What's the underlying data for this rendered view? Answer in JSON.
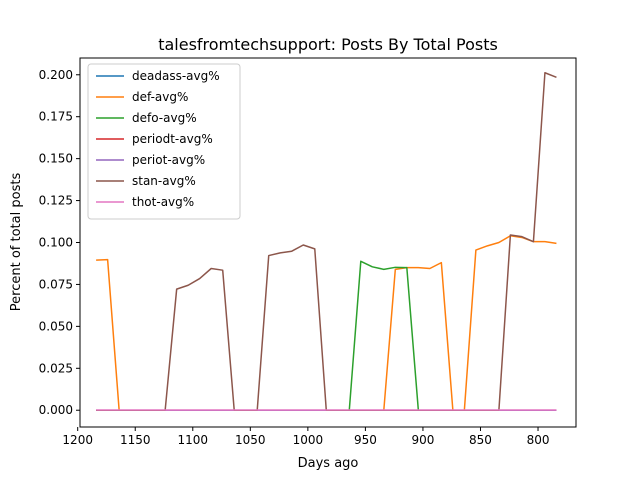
{
  "chart_data": {
    "type": "line",
    "title": "talesfromtechsupport: Posts By Total Posts",
    "xlabel": "Days ago",
    "ylabel": "Percent of total posts",
    "xlim": [
      1198,
      767
    ],
    "ylim": [
      -0.01,
      0.21
    ],
    "x_reversed": true,
    "xticks": [
      1200,
      1150,
      1100,
      1050,
      1000,
      950,
      900,
      850,
      800
    ],
    "xtick_labels": [
      "1200",
      "1150",
      "1100",
      "1050",
      "1000",
      "950",
      "900",
      "850",
      "800"
    ],
    "yticks": [
      0.0,
      0.025,
      0.05,
      0.075,
      0.1,
      0.125,
      0.15,
      0.175,
      0.2
    ],
    "ytick_labels": [
      "0.000",
      "0.025",
      "0.050",
      "0.075",
      "0.100",
      "0.125",
      "0.150",
      "0.175",
      "0.200"
    ],
    "grid": false,
    "legend_position": "upper-left",
    "x": [
      1184,
      1174,
      1164,
      1154,
      1144,
      1134,
      1124,
      1114,
      1104,
      1094,
      1084,
      1074,
      1064,
      1054,
      1044,
      1034,
      1024,
      1014,
      1004,
      994,
      984,
      974,
      964,
      954,
      944,
      934,
      924,
      914,
      904,
      894,
      884,
      874,
      864,
      854,
      844,
      834,
      824,
      814,
      804,
      794,
      784
    ],
    "series": [
      {
        "name": "deadass-avg%",
        "color": "#1f77b4",
        "values": [
          0,
          0,
          0,
          0,
          0,
          0,
          0,
          0,
          0,
          0,
          0,
          0,
          0,
          0,
          0,
          0,
          0,
          0,
          0,
          0,
          0,
          0,
          0,
          0,
          0,
          0,
          0,
          0,
          0,
          0,
          0,
          0,
          0,
          0,
          0,
          0,
          0,
          0,
          0,
          0,
          0
        ]
      },
      {
        "name": "def-avg%",
        "color": "#ff7f0e",
        "values": [
          0.0895,
          0.0898,
          0,
          0,
          0,
          0,
          0,
          0,
          0,
          0,
          0,
          0,
          0,
          0,
          0,
          0,
          0,
          0,
          0,
          0,
          0,
          0,
          0,
          0,
          0,
          0,
          0.084,
          0.085,
          0.085,
          0.0845,
          0.088,
          0,
          0,
          0.0955,
          0.098,
          0.1,
          0.104,
          0.103,
          0.1005,
          0.1005,
          0.0995
        ]
      },
      {
        "name": "defo-avg%",
        "color": "#2ca02c",
        "values": [
          0,
          0,
          0,
          0,
          0,
          0,
          0,
          0,
          0,
          0,
          0,
          0,
          0,
          0,
          0,
          0,
          0,
          0,
          0,
          0,
          0,
          0,
          0,
          0.0888,
          0.0855,
          0.084,
          0.0852,
          0.085,
          0,
          0,
          0,
          0,
          0,
          0,
          0,
          0,
          0,
          0,
          0,
          0,
          0
        ]
      },
      {
        "name": "periodt-avg%",
        "color": "#d62728",
        "values": [
          0,
          0,
          0,
          0,
          0,
          0,
          0,
          0,
          0,
          0,
          0,
          0,
          0,
          0,
          0,
          0,
          0,
          0,
          0,
          0,
          0,
          0,
          0,
          0,
          0,
          0,
          0,
          0,
          0,
          0,
          0,
          0,
          0,
          0,
          0,
          0,
          0,
          0,
          0,
          0,
          0
        ]
      },
      {
        "name": "periot-avg%",
        "color": "#9467bd",
        "values": [
          0,
          0,
          0,
          0,
          0,
          0,
          0,
          0,
          0,
          0,
          0,
          0,
          0,
          0,
          0,
          0,
          0,
          0,
          0,
          0,
          0,
          0,
          0,
          0,
          0,
          0,
          0,
          0,
          0,
          0,
          0,
          0,
          0,
          0,
          0,
          0,
          0,
          0,
          0,
          0,
          0
        ]
      },
      {
        "name": "stan-avg%",
        "color": "#8c564b",
        "values": [
          0,
          0,
          0,
          0,
          0,
          0,
          0,
          0.0722,
          0.0745,
          0.0785,
          0.0845,
          0.0835,
          0,
          0,
          0,
          0.0922,
          0.0938,
          0.0948,
          0.0985,
          0.0962,
          0,
          0,
          0,
          0,
          0,
          0,
          0,
          0,
          0,
          0,
          0,
          0,
          0,
          0,
          0,
          0,
          0.1045,
          0.1035,
          0.1005,
          0.2012,
          0.1985
        ]
      },
      {
        "name": "thot-avg%",
        "color": "#e377c2",
        "values": [
          0.0001,
          0.0001,
          0.0001,
          0.0001,
          0.0001,
          0.0001,
          0.0001,
          0.0001,
          0.0001,
          0.0001,
          0.0001,
          0.0001,
          0.0001,
          0.0001,
          0.0001,
          0.0001,
          0.0001,
          0.0001,
          0.0001,
          0.0001,
          0.0001,
          0.0001,
          0.0001,
          0.0001,
          0.0001,
          0.0001,
          0.0001,
          0.0001,
          0.0001,
          0.0001,
          0.0001,
          0.0001,
          0.0001,
          0.0001,
          0.0001,
          0.0001,
          0.0001,
          0.0001,
          0.0001,
          0.0001,
          0.0001
        ]
      }
    ]
  }
}
